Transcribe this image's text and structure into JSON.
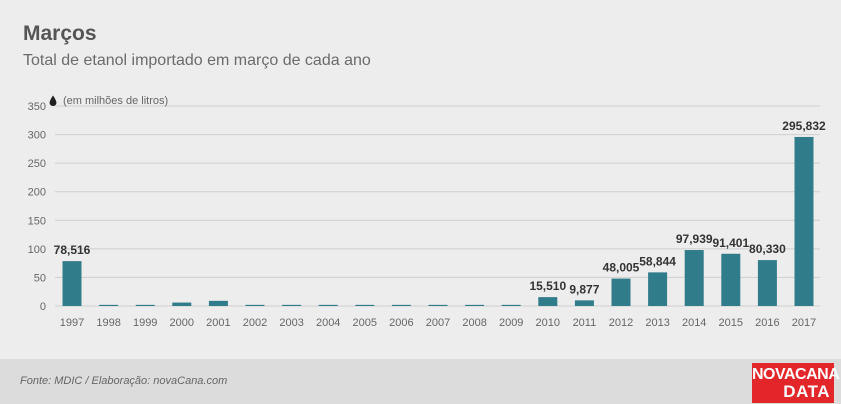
{
  "header": {
    "title": "Março",
    "title_cedilla": "s",
    "subtitle": "Total de etanol importado em março de cada ano"
  },
  "footer": {
    "source": "Fonte: MDIC / Elaboração: novaCana.com",
    "logo_line1": "NOVACANA",
    "logo_line2": "DATA"
  },
  "colors": {
    "bar": "#317c8a",
    "grid": "#cfcfcf",
    "axis_text": "#666666",
    "label_text": "#333333",
    "logo": "#e3262a"
  },
  "chart_data": {
    "type": "bar",
    "title": "Marços",
    "subtitle": "Total de etanol importado em março de cada ano",
    "unit_note": "(em milhões de litros)",
    "unit_icon": "drop-icon",
    "categories": [
      "1997",
      "1998",
      "1999",
      "2000",
      "2001",
      "2002",
      "2003",
      "2004",
      "2005",
      "2006",
      "2007",
      "2008",
      "2009",
      "2010",
      "2011",
      "2012",
      "2013",
      "2014",
      "2015",
      "2016",
      "2017"
    ],
    "values": [
      78.516,
      2,
      2,
      6,
      9,
      2,
      2,
      2,
      2,
      2,
      2,
      2,
      2,
      15.51,
      9.877,
      48.005,
      58.844,
      97.939,
      91.401,
      80.33,
      295.832
    ],
    "data_labels": [
      "78,516",
      "",
      "",
      "",
      "",
      "",
      "",
      "",
      "",
      "",
      "",
      "",
      "",
      "15,510",
      "9,877",
      "48,005",
      "58,844",
      "97,939",
      "91,401",
      "80,330",
      "295,832"
    ],
    "ylim": [
      0,
      350
    ],
    "yticks": [
      0,
      50,
      100,
      150,
      200,
      250,
      300,
      350
    ],
    "grid": true,
    "legend": "none"
  }
}
